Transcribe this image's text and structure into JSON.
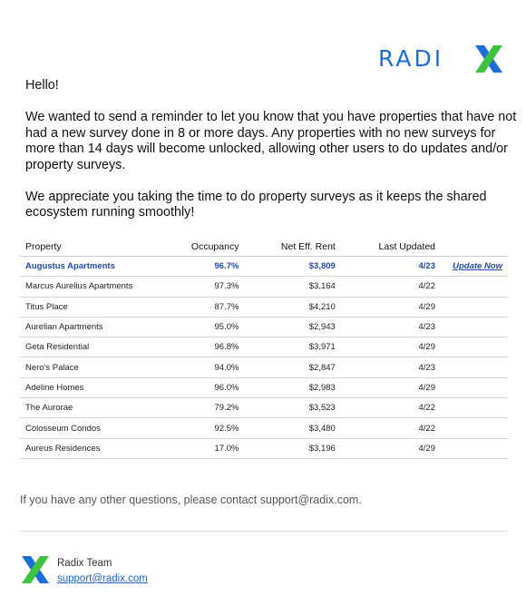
{
  "brand": {
    "logo_text": "RADI",
    "logo_color": "#1a6ed8",
    "accent_green": "#3fc33f"
  },
  "message": {
    "greeting": "Hello!",
    "paragraph1": "We wanted to send a reminder to let you know that you have properties that have not had a new survey done in 8 or more days. Any properties with no new surveys for more than 14 days will become unlocked, allowing other users to do updates and/or property surveys.",
    "paragraph2": "We appreciate you taking the time to do property surveys as it keeps the shared ecosystem running smoothly!"
  },
  "table": {
    "headers": {
      "property": "Property",
      "occupancy": "Occupancy",
      "rent": "Net Eff. Rent",
      "updated": "Last Updated"
    },
    "highlight": {
      "property": "Augustus Apartments",
      "occupancy": "96.7%",
      "rent": "$3,809",
      "updated": "4/23",
      "action": "Update Now"
    },
    "rows": [
      {
        "property": "Marcus Aurelius Apartments",
        "occupancy": "97.3%",
        "rent": "$3,164",
        "updated": "4/22"
      },
      {
        "property": "Titus Place",
        "occupancy": "87.7%",
        "rent": "$4,210",
        "updated": "4/29"
      },
      {
        "property": "Aurelian Apartments",
        "occupancy": "95.0%",
        "rent": "$2,943",
        "updated": "4/23"
      },
      {
        "property": "Geta Residential",
        "occupancy": "96.8%",
        "rent": "$3,971",
        "updated": "4/29"
      },
      {
        "property": "Nero's Palace",
        "occupancy": "94.0%",
        "rent": "$2,847",
        "updated": "4/23"
      },
      {
        "property": "Adeline Homes",
        "occupancy": "96.0%",
        "rent": "$2,983",
        "updated": "4/29"
      },
      {
        "property": "The Aurorae",
        "occupancy": "79.2%",
        "rent": "$3,523",
        "updated": "4/22"
      },
      {
        "property": "Colosseum Condos",
        "occupancy": "92.5%",
        "rent": "$3,480",
        "updated": "4/22"
      },
      {
        "property": "Aureus Residences",
        "occupancy": "17.0%",
        "rent": "$3,196",
        "updated": "4/29"
      }
    ]
  },
  "contact_line": "If you have any other questions, please contact support@radix.com.",
  "signature": {
    "name": "Radix Team",
    "email": "support@radix.com",
    "icon": "radix-x-icon"
  }
}
